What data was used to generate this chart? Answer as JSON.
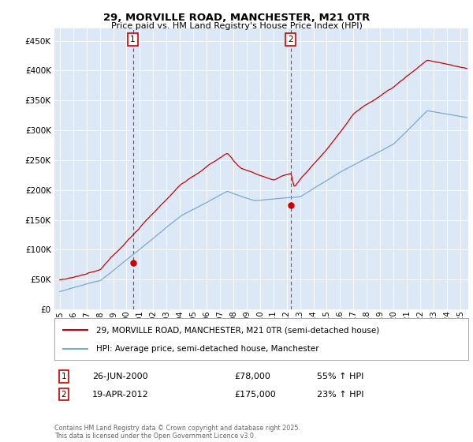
{
  "title": "29, MORVILLE ROAD, MANCHESTER, M21 0TR",
  "subtitle": "Price paid vs. HM Land Registry's House Price Index (HPI)",
  "ytick_values": [
    0,
    50000,
    100000,
    150000,
    200000,
    250000,
    300000,
    350000,
    400000,
    450000
  ],
  "ylim": [
    0,
    470000
  ],
  "xlim_start": 1994.6,
  "xlim_end": 2025.6,
  "red_line_color": "#cc0000",
  "blue_line_color": "#7aaad0",
  "vline_color": "#cc0000",
  "marker1_x": 2000.48,
  "marker1_y": 78000,
  "marker2_x": 2012.29,
  "marker2_y": 175000,
  "legend_red_label": "29, MORVILLE ROAD, MANCHESTER, M21 0TR (semi-detached house)",
  "legend_blue_label": "HPI: Average price, semi-detached house, Manchester",
  "annotation1_date": "26-JUN-2000",
  "annotation1_price": "£78,000",
  "annotation1_hpi": "55% ↑ HPI",
  "annotation2_date": "19-APR-2012",
  "annotation2_price": "£175,000",
  "annotation2_hpi": "23% ↑ HPI",
  "footer": "Contains HM Land Registry data © Crown copyright and database right 2025.\nThis data is licensed under the Open Government Licence v3.0.",
  "background_color": "#ffffff",
  "plot_bg_color": "#dce8f5"
}
